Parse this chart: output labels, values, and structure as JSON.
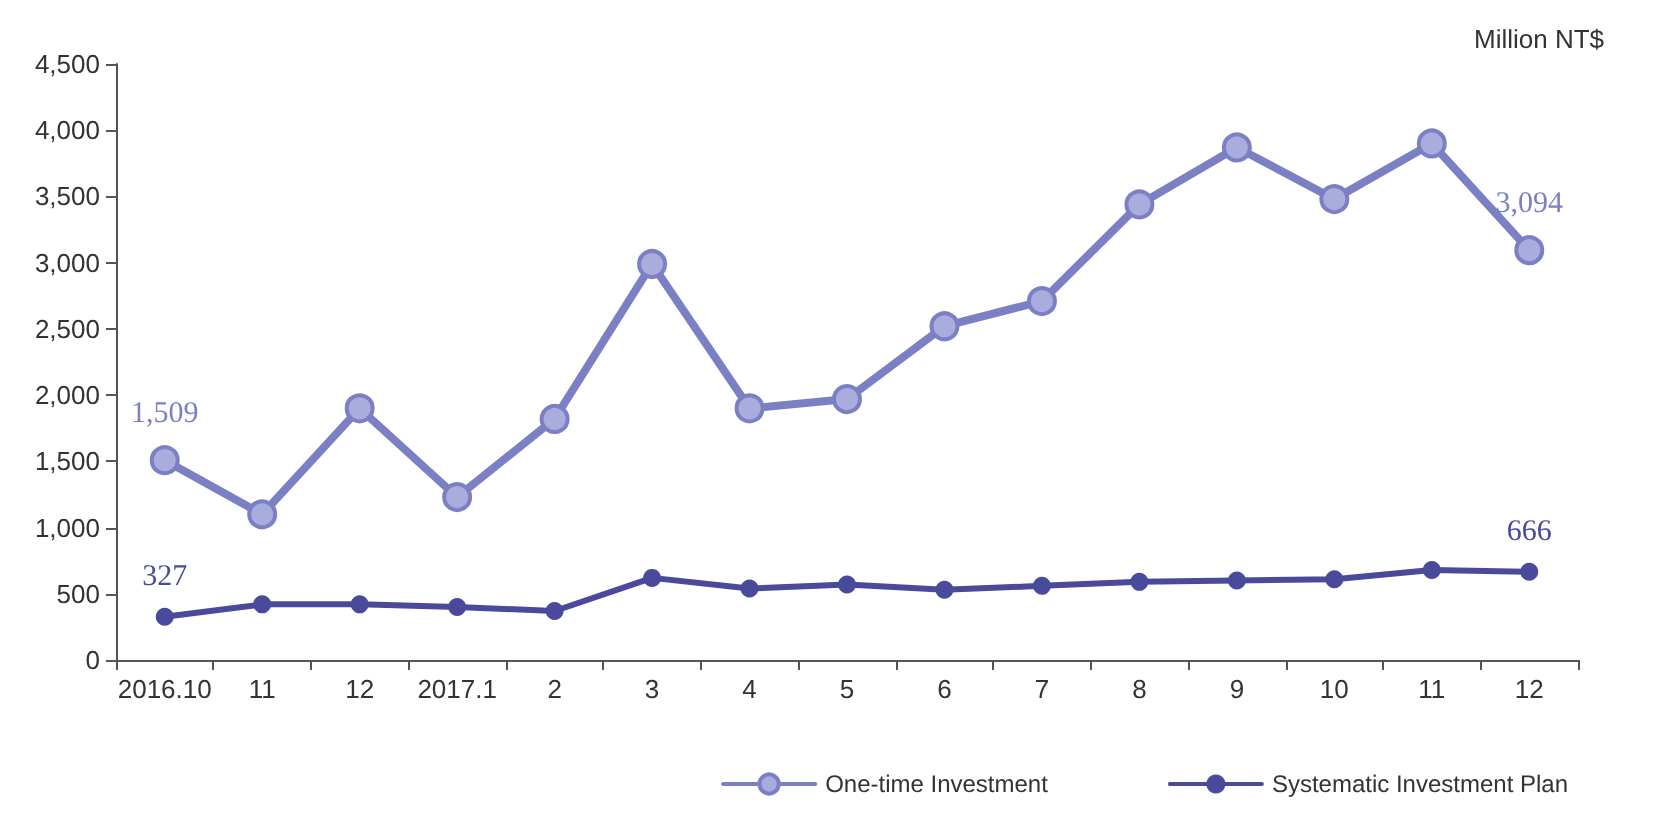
{
  "chart_data": {
    "type": "line",
    "ylabel": "Million NT$",
    "categories": [
      "2016.10",
      "11",
      "12",
      "2017.1",
      "2",
      "3",
      "4",
      "5",
      "6",
      "7",
      "8",
      "9",
      "10",
      "11",
      "12"
    ],
    "series": [
      {
        "name": "One-time Investment",
        "color": "#7b7fc4",
        "values": [
          1509,
          1100,
          1900,
          1230,
          1820,
          2990,
          1900,
          1970,
          2520,
          2710,
          3440,
          3870,
          3480,
          3900,
          3094
        ],
        "value_labels": [
          "1,509",
          null,
          null,
          null,
          null,
          null,
          null,
          null,
          null,
          null,
          null,
          null,
          null,
          null,
          "3,094"
        ]
      },
      {
        "name": "Systematic Investment Plan",
        "color": "#4a4a9c",
        "values": [
          327,
          420,
          420,
          400,
          370,
          620,
          540,
          570,
          530,
          560,
          590,
          600,
          610,
          680,
          666
        ],
        "value_labels": [
          "327",
          null,
          null,
          null,
          null,
          null,
          null,
          null,
          null,
          null,
          null,
          null,
          null,
          null,
          "666"
        ]
      }
    ],
    "ylim": [
      0,
      4500
    ],
    "yticks": [
      0,
      500,
      {
        "value": 1000,
        "label": "1,000"
      },
      {
        "value": 1500,
        "label": "1,500"
      },
      {
        "value": 2000,
        "label": "2,000"
      },
      {
        "value": 2500,
        "label": "2,500"
      },
      {
        "value": 3000,
        "label": "3,000"
      },
      {
        "value": 3500,
        "label": "3,500"
      },
      {
        "value": 4000,
        "label": "4,000"
      },
      {
        "value": 4500,
        "label": "4,500"
      }
    ],
    "grid": false,
    "legend": "bottom right",
    "marker": "circle",
    "line_style": "solid"
  }
}
